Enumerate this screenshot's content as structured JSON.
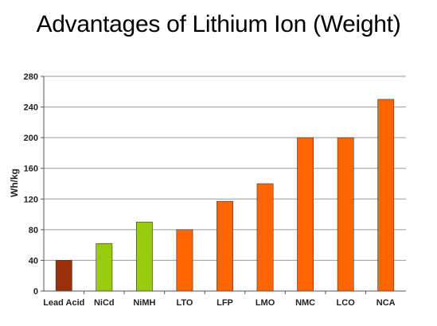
{
  "chart_data": {
    "type": "bar",
    "title": "Advantages of Lithium Ion  (Weight)",
    "xlabel": "",
    "ylabel": "Wh/kg",
    "ylim": [
      0,
      280
    ],
    "yticks": [
      0,
      40,
      80,
      120,
      160,
      200,
      240,
      280
    ],
    "grid": "horizontal",
    "legend": "none",
    "categories": [
      "Lead Acid",
      "NiCd",
      "NiMH",
      "LTO",
      "LFP",
      "LMO",
      "NMC",
      "LCO",
      "NCA"
    ],
    "values": [
      40,
      62,
      90,
      80,
      117,
      140,
      200,
      200,
      250
    ],
    "colors": [
      "#9a2f0c",
      "#99cc11",
      "#99cc11",
      "#ff6600",
      "#ff6600",
      "#ff6600",
      "#ff6600",
      "#ff6600",
      "#ff6600"
    ]
  }
}
